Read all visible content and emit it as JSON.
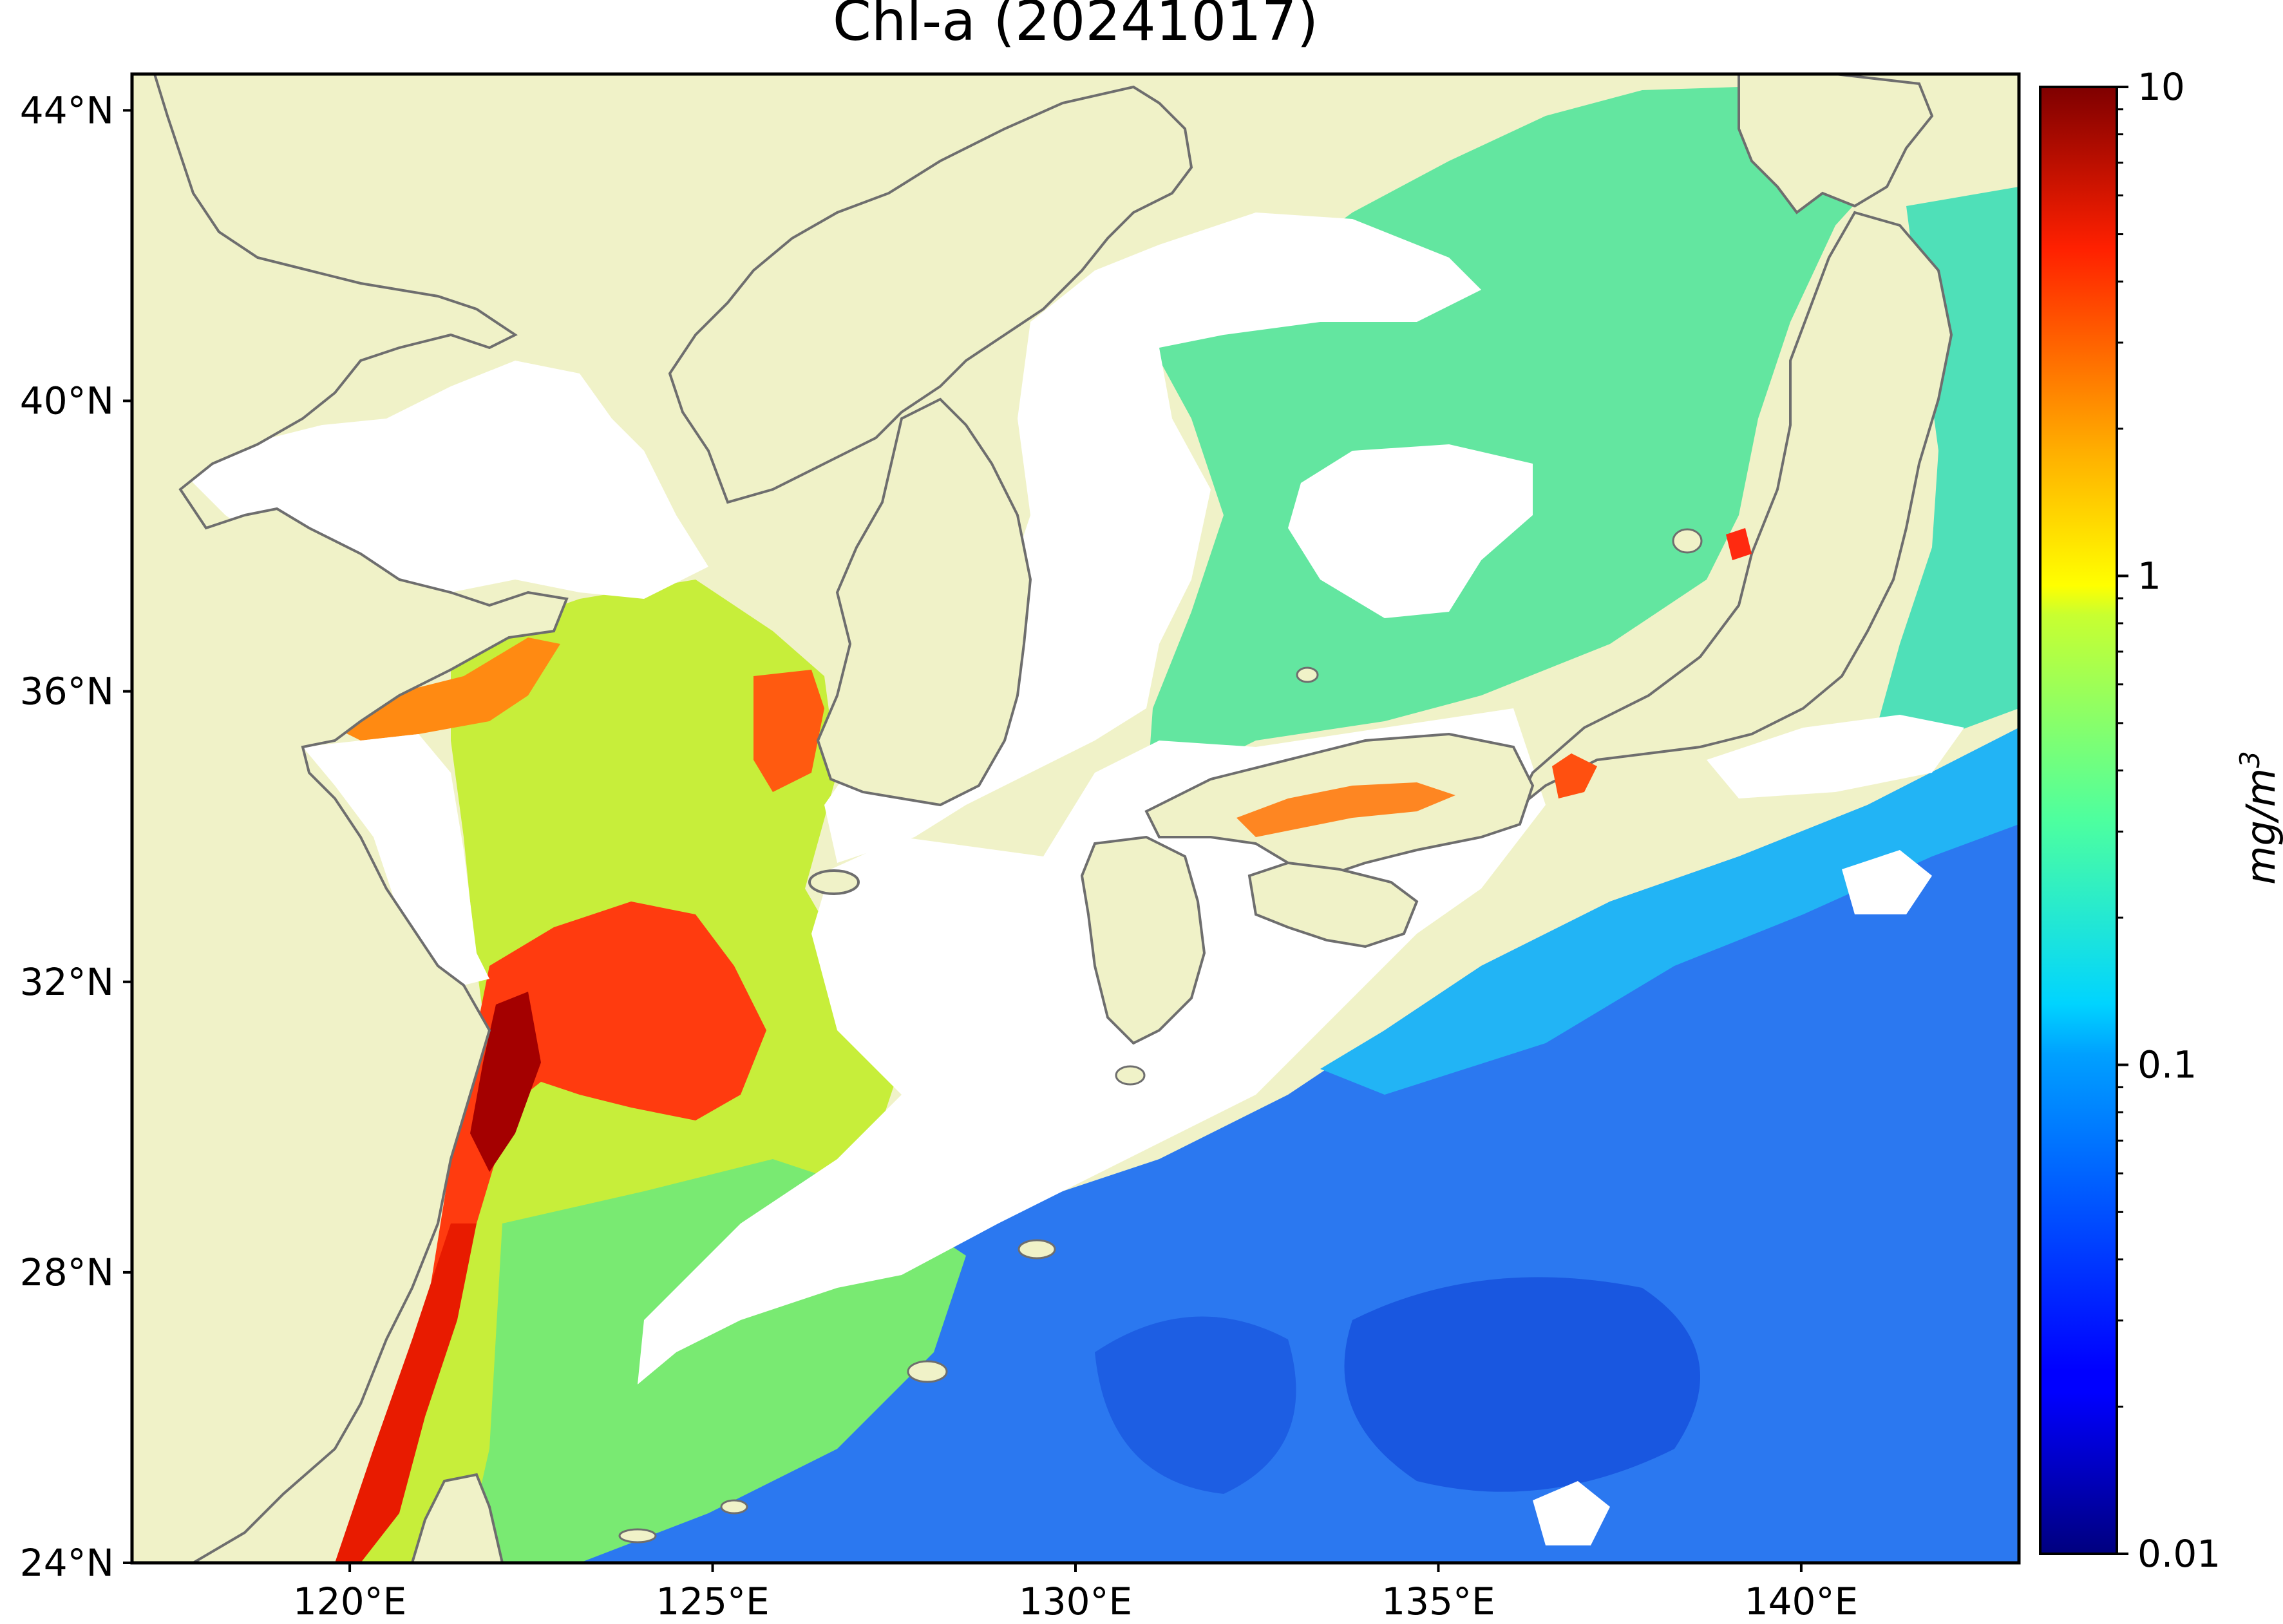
{
  "map": {
    "title": "Chl-a (20241017)",
    "lat_labels": [
      {
        "value": 44,
        "label": "44°N"
      },
      {
        "value": 40,
        "label": "40°N"
      },
      {
        "value": 36,
        "label": "36°N"
      },
      {
        "value": 32,
        "label": "32°N"
      },
      {
        "value": 28,
        "label": "28°N"
      },
      {
        "value": 24,
        "label": "24°N"
      }
    ],
    "lon_labels": [
      {
        "value": 120,
        "label": "120°E"
      },
      {
        "value": 125,
        "label": "125°E"
      },
      {
        "value": 130,
        "label": "130°E"
      },
      {
        "value": 135,
        "label": "135°E"
      },
      {
        "value": 140,
        "label": "140°E"
      }
    ],
    "extent": {
      "lon": [
        117,
        143
      ],
      "lat": [
        24,
        44.5
      ]
    },
    "colors": {
      "land": "#f0f2c8",
      "no_data": "#ffffff",
      "coastline": "#6e6e6e"
    }
  },
  "colorbar": {
    "label": "mg/m",
    "label_superscript": "3",
    "scale": "log",
    "range": [
      0.01,
      10
    ],
    "colormap": "jet",
    "ticks": [
      {
        "value": 10,
        "label": "10"
      },
      {
        "value": 1,
        "label": "1"
      },
      {
        "value": 0.1,
        "label": "0.1"
      },
      {
        "value": 0.01,
        "label": "0.01"
      }
    ]
  }
}
